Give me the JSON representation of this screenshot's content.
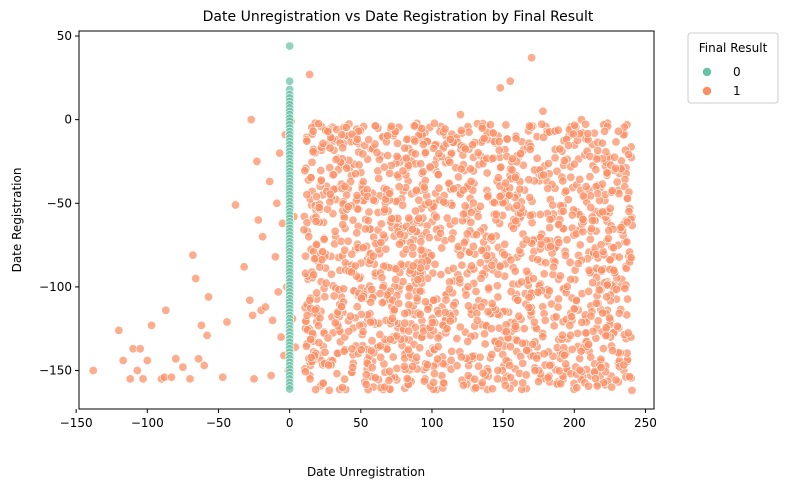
{
  "chart_data": {
    "type": "scatter",
    "title": "Date Unregistration vs Date Registration by Final Result",
    "xlabel": "Date Unregistration",
    "ylabel": "Date Registration",
    "xlim": [
      -148,
      256
    ],
    "ylim": [
      -173,
      53
    ],
    "xticks": [
      -150,
      -100,
      -50,
      0,
      50,
      100,
      150,
      200,
      250
    ],
    "yticks": [
      -150,
      -100,
      -50,
      0,
      50
    ],
    "xtick_labels": [
      "−150",
      "−100",
      "−50",
      "0",
      "50",
      "100",
      "150",
      "200",
      "250"
    ],
    "ytick_labels": [
      "−150",
      "−100",
      "−50",
      "0",
      "50"
    ],
    "grid": false,
    "legend": {
      "title": "Final Result",
      "placement": "outside-top-right",
      "entries": [
        "0",
        "1"
      ]
    },
    "colors": {
      "series_0": "#66c2a5",
      "series_1": "#fc8d62"
    },
    "series": [
      {
        "name": "0",
        "points": [
          [
            0,
            44
          ],
          [
            0,
            23
          ],
          [
            0,
            18
          ],
          [
            0,
            15
          ],
          [
            0,
            13
          ],
          [
            0,
            11
          ],
          [
            0,
            9
          ],
          [
            0,
            7
          ],
          [
            0,
            5
          ],
          [
            0,
            3
          ],
          [
            0,
            1
          ],
          [
            0,
            -1
          ],
          [
            0,
            -3
          ],
          [
            0,
            -5
          ],
          [
            0,
            -7
          ],
          [
            0,
            -9
          ],
          [
            0,
            -11
          ],
          [
            0,
            -13
          ],
          [
            0,
            -15
          ],
          [
            0,
            -17
          ],
          [
            0,
            -19
          ],
          [
            0,
            -21
          ],
          [
            0,
            -23
          ],
          [
            0,
            -25
          ],
          [
            0,
            -27
          ],
          [
            0,
            -29
          ],
          [
            0,
            -31
          ],
          [
            0,
            -33
          ],
          [
            0,
            -35
          ],
          [
            0,
            -37
          ],
          [
            0,
            -39
          ],
          [
            0,
            -41
          ],
          [
            0,
            -43
          ],
          [
            0,
            -45
          ],
          [
            0,
            -47
          ],
          [
            0,
            -49
          ],
          [
            0,
            -51
          ],
          [
            0,
            -53
          ],
          [
            0,
            -55
          ],
          [
            0,
            -57
          ],
          [
            0,
            -59
          ],
          [
            0,
            -61
          ],
          [
            0,
            -63
          ],
          [
            0,
            -65
          ],
          [
            0,
            -67
          ],
          [
            0,
            -69
          ],
          [
            0,
            -71
          ],
          [
            0,
            -73
          ],
          [
            0,
            -75
          ],
          [
            0,
            -77
          ],
          [
            0,
            -79
          ],
          [
            0,
            -81
          ],
          [
            0,
            -83
          ],
          [
            0,
            -85
          ],
          [
            0,
            -87
          ],
          [
            0,
            -89
          ],
          [
            0,
            -91
          ],
          [
            0,
            -93
          ],
          [
            0,
            -95
          ],
          [
            0,
            -97
          ],
          [
            0,
            -99
          ],
          [
            0,
            -101
          ],
          [
            0,
            -103
          ],
          [
            0,
            -105
          ],
          [
            0,
            -107
          ],
          [
            0,
            -109
          ],
          [
            0,
            -111
          ],
          [
            0,
            -113
          ],
          [
            0,
            -115
          ],
          [
            0,
            -117
          ],
          [
            0,
            -119
          ],
          [
            0,
            -121
          ],
          [
            0,
            -123
          ],
          [
            0,
            -125
          ],
          [
            0,
            -127
          ],
          [
            0,
            -129
          ],
          [
            0,
            -131
          ],
          [
            0,
            -133
          ],
          [
            0,
            -135
          ],
          [
            0,
            -137
          ],
          [
            0,
            -139
          ],
          [
            0,
            -141
          ],
          [
            0,
            -143
          ],
          [
            0,
            -145
          ],
          [
            0,
            -147
          ],
          [
            0,
            -149
          ],
          [
            0,
            -151
          ],
          [
            0,
            -153
          ],
          [
            0,
            -155
          ],
          [
            0,
            -157
          ],
          [
            0,
            -159
          ],
          [
            0,
            -161
          ]
        ]
      },
      {
        "name": "1",
        "points": [
          [
            -138,
            -150
          ],
          [
            -120,
            -126
          ],
          [
            -117,
            -144
          ],
          [
            -112,
            -155
          ],
          [
            -110,
            -137
          ],
          [
            -107,
            -150
          ],
          [
            -105,
            -137
          ],
          [
            -103,
            -155
          ],
          [
            -100,
            -144
          ],
          [
            -97,
            -123
          ],
          [
            -90,
            -155
          ],
          [
            -88,
            -154
          ],
          [
            -87,
            -114
          ],
          [
            -83,
            -154
          ],
          [
            -80,
            -143
          ],
          [
            -75,
            -148
          ],
          [
            -70,
            -155
          ],
          [
            -68,
            -81
          ],
          [
            -66,
            -95
          ],
          [
            -64,
            -143
          ],
          [
            -62,
            -123
          ],
          [
            -60,
            -147
          ],
          [
            -58,
            -129
          ],
          [
            -57,
            -106
          ],
          [
            -47,
            -154
          ],
          [
            -44,
            -121
          ],
          [
            -38,
            -51
          ],
          [
            -32,
            -88
          ],
          [
            -28,
            -108
          ],
          [
            -27,
            0
          ],
          [
            -26,
            -117
          ],
          [
            -25,
            -155
          ],
          [
            -23,
            -25
          ],
          [
            -22,
            -60
          ],
          [
            -20,
            -114
          ],
          [
            -19,
            -70
          ],
          [
            -17,
            -112
          ],
          [
            -14,
            -37
          ],
          [
            -13,
            -153
          ],
          [
            -12,
            -120
          ],
          [
            -10,
            -82
          ],
          [
            -9,
            -50
          ],
          [
            -8,
            -103
          ],
          [
            -7,
            -20
          ],
          [
            -6,
            -130
          ],
          [
            -5,
            -62
          ],
          [
            -4,
            -141
          ],
          [
            -3,
            -9
          ],
          [
            -2,
            -100
          ],
          [
            -1,
            -150
          ],
          [
            1,
            -1
          ],
          [
            2,
            -119
          ],
          [
            3,
            -58
          ],
          [
            4,
            -136
          ],
          [
            170,
            37
          ],
          [
            155,
            23
          ],
          [
            148,
            19
          ],
          [
            178,
            5
          ],
          [
            120,
            3
          ],
          [
            14,
            27
          ],
          [
            237,
            -3
          ],
          [
            205,
            0
          ],
          [
            180,
            -4
          ]
        ]
      }
    ]
  }
}
